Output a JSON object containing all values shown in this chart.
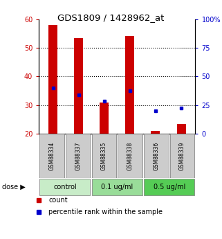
{
  "title": "GDS1809 / 1428962_at",
  "samples": [
    "GSM88334",
    "GSM88337",
    "GSM88335",
    "GSM88338",
    "GSM88336",
    "GSM88339"
  ],
  "count_values": [
    58,
    53.5,
    31,
    54,
    21,
    23.5
  ],
  "count_base": [
    20,
    20,
    20,
    20,
    20,
    20
  ],
  "percentile_values": [
    36,
    33.5,
    31.5,
    35,
    28,
    29
  ],
  "groups": [
    {
      "label": "control",
      "indices": [
        0,
        1
      ],
      "color": "#c8ecc8"
    },
    {
      "label": "0.1 ug/ml",
      "indices": [
        2,
        3
      ],
      "color": "#99dd99"
    },
    {
      "label": "0.5 ug/ml",
      "indices": [
        4,
        5
      ],
      "color": "#55cc55"
    }
  ],
  "ylim_left": [
    20,
    60
  ],
  "yticks_left": [
    20,
    30,
    40,
    50,
    60
  ],
  "ylim_right": [
    0,
    100
  ],
  "yticks_right": [
    0,
    25,
    50,
    75,
    100
  ],
  "ytick_labels_right": [
    "0",
    "25",
    "50",
    "75",
    "100%"
  ],
  "bar_color": "#cc0000",
  "dot_color": "#0000cc",
  "bar_width": 0.35,
  "left_tick_color": "#cc0000",
  "right_tick_color": "#0000cc",
  "sample_box_color": "#cccccc",
  "legend_count_label": "count",
  "legend_pct_label": "percentile rank within the sample"
}
